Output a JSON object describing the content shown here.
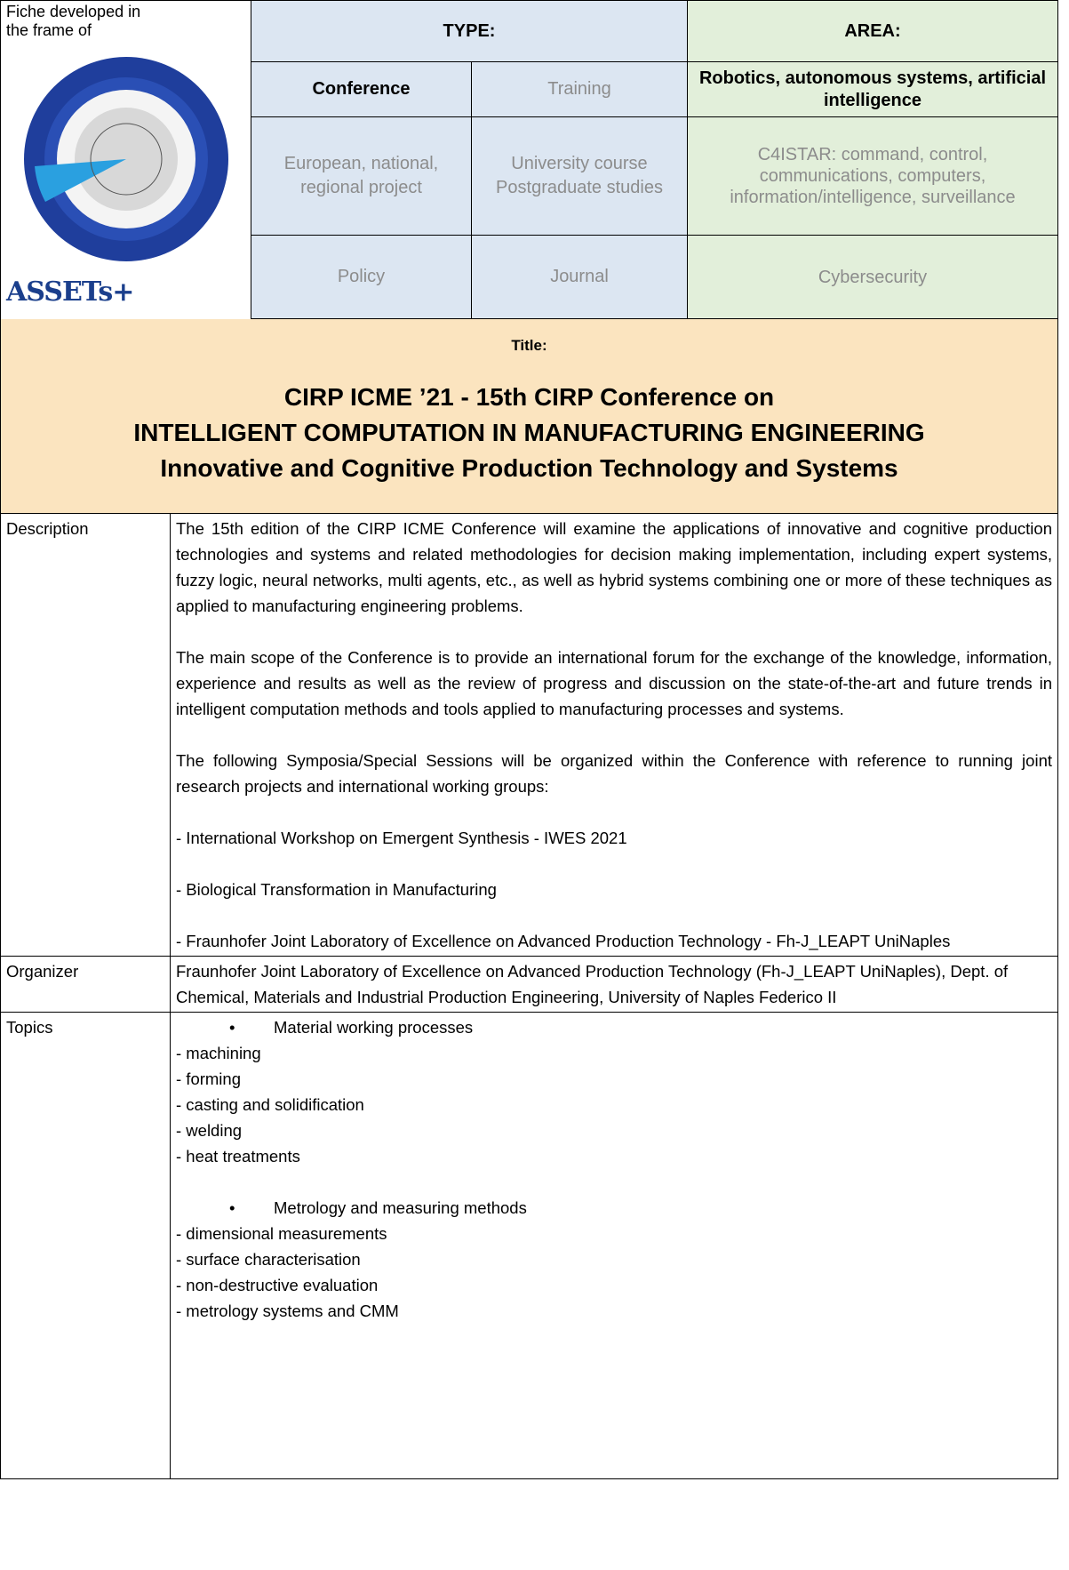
{
  "header": {
    "fiche_label": "Fiche developed in the frame of",
    "logo_text": "ASSETs+",
    "type_heading": "TYPE:",
    "area_heading": "AREA:",
    "rows": [
      {
        "type": [
          {
            "label": "Conference",
            "selected": true
          },
          {
            "label": "Training",
            "selected": false
          }
        ],
        "area": {
          "label": "Robotics, autonomous systems, artificial intelligence",
          "selected": true
        }
      },
      {
        "type": [
          {
            "label": "European, national, regional project",
            "selected": false
          },
          {
            "label": "University course Postgraduate studies",
            "selected": false
          }
        ],
        "area": {
          "label": "C4ISTAR: command, control, communications, computers, information/intelligence, surveillance",
          "selected": false
        }
      },
      {
        "type": [
          {
            "label": "Policy",
            "selected": false
          },
          {
            "label": "Journal",
            "selected": false
          }
        ],
        "area": {
          "label": "Cybersecurity",
          "selected": false
        }
      }
    ]
  },
  "title": {
    "label": "Title:",
    "lines": [
      "CIRP ICME ’21 - 15th CIRP Conference on",
      "INTELLIGENT COMPUTATION IN MANUFACTURING ENGINEERING",
      "Innovative and Cognitive Production Technology and Systems"
    ]
  },
  "description": {
    "label": "Description",
    "paragraphs": [
      "The 15th edition of the CIRP ICME Conference will examine the applications of innovative and cognitive production technologies and systems and related methodologies for decision making implementation, including expert systems, fuzzy logic, neural networks, multi agents, etc., as well as hybrid systems combining one or more of these techniques as applied to manufacturing engineering problems.",
      "The main scope of the Conference is to provide an international forum for the exchange of the knowledge, information, experience and results as well as the review of progress and discussion on the state-of-the-art and future trends in intelligent computation methods and tools applied to manufacturing processes and systems.",
      "The following Symposia/Special Sessions will be organized within the Conference with reference to running joint research projects and international working groups:",
      "- International Workshop on Emergent Synthesis - IWES 2021",
      "- Biological Transformation in Manufacturing",
      "- Fraunhofer Joint Laboratory of Excellence on Advanced Production Technology - Fh-J_LEAPT UniNaples"
    ]
  },
  "organizer": {
    "label": "Organizer",
    "text": "Fraunhofer Joint Laboratory of Excellence on Advanced Production Technology (Fh-J_LEAPT UniNaples), Dept. of Chemical, Materials and Industrial Production Engineering, University of Naples Federico II"
  },
  "topics": {
    "label": "Topics",
    "groups": [
      {
        "heading": "Material working processes",
        "items": [
          "- machining",
          "- forming",
          "- casting and solidification",
          "- welding",
          "- heat treatments"
        ]
      },
      {
        "heading": "Metrology and measuring methods",
        "items": [
          "- dimensional measurements",
          "- surface characterisation",
          "- non-destructive evaluation",
          "- metrology systems and CMM"
        ]
      }
    ]
  }
}
